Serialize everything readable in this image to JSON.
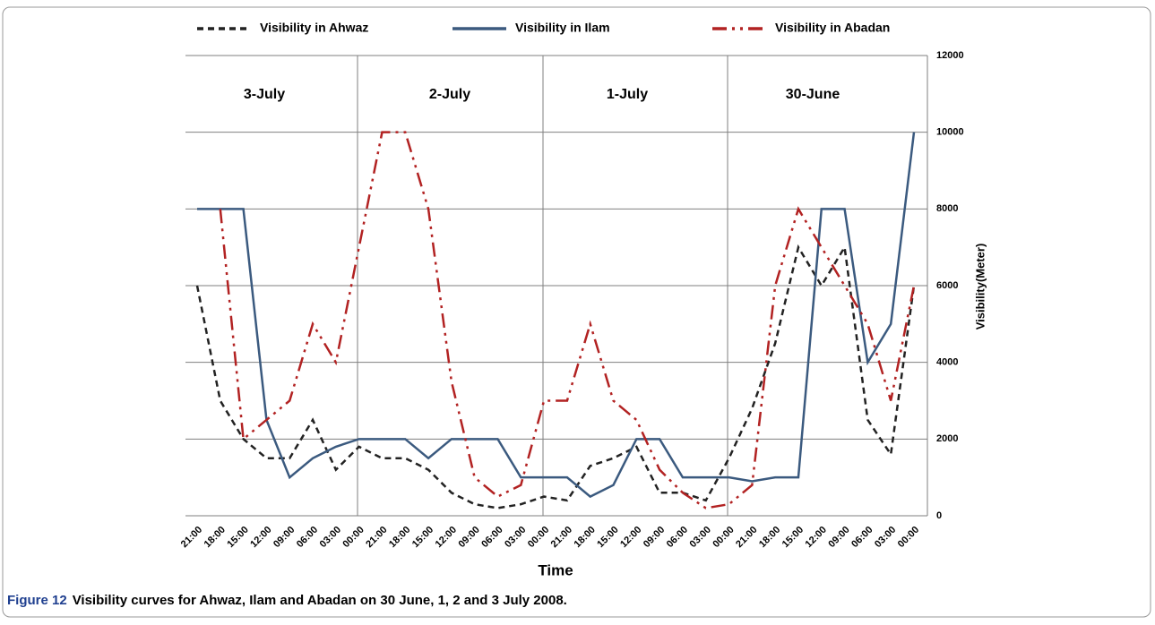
{
  "chart_data": {
    "type": "line",
    "figure_label": "Figure 12",
    "caption": "Visibility curves for Ahwaz, Ilam and Abadan on 30 June, 1, 2 and 3 July 2008.",
    "xlabel": "Time",
    "ylabel": "Visibility(Meter)",
    "annotations": [
      "3-July",
      "2-July",
      "1-July",
      "30-June"
    ],
    "categories": [
      "21:00",
      "18:00",
      "15:00",
      "12:00",
      "09:00",
      "06:00",
      "03:00",
      "00:00",
      "21:00",
      "18:00",
      "15:00",
      "12:00",
      "09:00",
      "06:00",
      "03:00",
      "00:00",
      "21:00",
      "18:00",
      "15:00",
      "12:00",
      "09:00",
      "06:00",
      "03:00",
      "00:00",
      "21:00",
      "18:00",
      "15:00",
      "12:00",
      "09:00",
      "06:00",
      "03:00",
      "00:00"
    ],
    "series": [
      {
        "name": "Visibility in Ahwaz",
        "color": "#222222",
        "values": [
          6000,
          3000,
          2000,
          1500,
          1500,
          2500,
          1200,
          1800,
          1500,
          1500,
          1200,
          600,
          300,
          200,
          300,
          500,
          400,
          1300,
          1500,
          1800,
          600,
          600,
          400,
          1500,
          2800,
          4500,
          7000,
          6000,
          7000,
          2500,
          1600,
          6000
        ]
      },
      {
        "name": "Visibility in Ilam",
        "color": "#3b5a7f",
        "values": [
          8000,
          8000,
          8000,
          2500,
          1000,
          1500,
          1800,
          2000,
          2000,
          2000,
          1500,
          2000,
          2000,
          2000,
          1000,
          1000,
          1000,
          500,
          800,
          2000,
          2000,
          1000,
          1000,
          1000,
          900,
          1000,
          1000,
          8000,
          8000,
          4000,
          5000,
          10000
        ]
      },
      {
        "name": "Visibility in Abadan",
        "color": "#b22222",
        "values": [
          null,
          8000,
          2000,
          2500,
          3000,
          5000,
          4000,
          7000,
          10000,
          10000,
          8000,
          3500,
          1000,
          500,
          800,
          3000,
          3000,
          5000,
          3000,
          2500,
          1200,
          600,
          200,
          300,
          800,
          6000,
          8000,
          7000,
          6000,
          5000,
          3000,
          6000
        ]
      }
    ],
    "ylim": [
      0,
      12000
    ],
    "yticks": [
      0,
      2000,
      4000,
      6000,
      8000,
      10000,
      12000
    ],
    "grid": true
  }
}
